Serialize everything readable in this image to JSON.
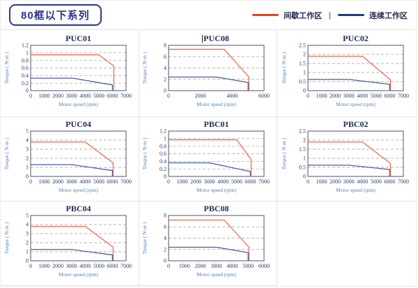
{
  "header": {
    "series_title": "80框以下系列",
    "legend_separator": "|",
    "legend": [
      {
        "name": "intermittent-zone",
        "label": "间歇工作区",
        "color": "#e8431c"
      },
      {
        "name": "continuous-zone",
        "label": "连续工作区",
        "color": "#1f3c87"
      }
    ]
  },
  "colors": {
    "badge_navy": "#2b3690",
    "chart_red": "#ed6a4e",
    "chart_blue": "#4a5c9b",
    "frame": "#4b5563",
    "grid_dash": "#9e9e9e",
    "tick_text": "#2b3a67",
    "axis_label_text": "#4f7fc2",
    "title_text": "#1f2c55",
    "cell_border": "#e4e4e4"
  },
  "chart_data": [
    {
      "type": "line",
      "title": "PUC01",
      "cursor": false,
      "xlabel": "Motor speed (rpm)",
      "ylabel": "Torque ( N·m )",
      "xlim": [
        0,
        7000
      ],
      "xticks": [
        0,
        1000,
        2000,
        3000,
        4000,
        5000,
        6000,
        7000
      ],
      "ylim": [
        0,
        1.2
      ],
      "yticks": [
        0,
        0.2,
        0.4,
        0.6,
        0.8,
        1,
        1.2
      ],
      "series": [
        {
          "name": "间歇工作区",
          "color": "#ed6a4e",
          "points": [
            [
              0,
              0.95
            ],
            [
              5000,
              0.95
            ],
            [
              6100,
              0.65
            ],
            [
              6100,
              0
            ]
          ]
        },
        {
          "name": "连续工作区",
          "color": "#4a5c9b",
          "points": [
            [
              0,
              0.33
            ],
            [
              3100,
              0.33
            ],
            [
              6000,
              0.15
            ],
            [
              6000,
              0
            ]
          ]
        }
      ]
    },
    {
      "type": "line",
      "title": "PUC08",
      "cursor": true,
      "xlabel": "Motor speed (rpm)",
      "ylabel": "Torque ( N·m )",
      "xlim": [
        0,
        6000
      ],
      "xticks": [
        0,
        2000,
        4000,
        6000
      ],
      "ylim": [
        0,
        8
      ],
      "yticks": [
        0,
        2,
        4,
        6,
        8
      ],
      "series": [
        {
          "name": "间歇工作区",
          "color": "#ed6a4e",
          "points": [
            [
              0,
              7.3
            ],
            [
              3500,
              7.3
            ],
            [
              5050,
              2.4
            ],
            [
              5050,
              0
            ]
          ]
        },
        {
          "name": "连续工作区",
          "color": "#4a5c9b",
          "points": [
            [
              0,
              2.4
            ],
            [
              3000,
              2.4
            ],
            [
              5000,
              1.45
            ],
            [
              5000,
              0
            ]
          ]
        }
      ]
    },
    {
      "type": "line",
      "title": "PUC02",
      "cursor": false,
      "xlabel": "Motor speed (rpm)",
      "ylabel": "Torque ( N·m )",
      "xlim": [
        0,
        7000
      ],
      "xticks": [
        0,
        1000,
        2000,
        3000,
        4000,
        5000,
        6000,
        7000
      ],
      "ylim": [
        0,
        2.5
      ],
      "yticks": [
        0,
        0.5,
        1,
        1.5,
        2,
        2.5
      ],
      "series": [
        {
          "name": "间歇工作区",
          "color": "#ed6a4e",
          "points": [
            [
              0,
              1.9
            ],
            [
              4000,
              1.9
            ],
            [
              6050,
              0.6
            ],
            [
              6050,
              0
            ]
          ]
        },
        {
          "name": "连续工作区",
          "color": "#4a5c9b",
          "points": [
            [
              0,
              0.62
            ],
            [
              3000,
              0.62
            ],
            [
              6000,
              0.35
            ],
            [
              6000,
              0
            ]
          ]
        }
      ]
    },
    {
      "type": "line",
      "title": "PUC04",
      "cursor": false,
      "xlabel": "Motor speed (rpm)",
      "ylabel": "Torque ( N·m )",
      "xlim": [
        0,
        7000
      ],
      "xticks": [
        0,
        1000,
        2000,
        3000,
        4000,
        5000,
        6000,
        7000
      ],
      "ylim": [
        0,
        5
      ],
      "yticks": [
        0,
        1,
        2,
        3,
        4,
        5
      ],
      "series": [
        {
          "name": "间歇工作区",
          "color": "#ed6a4e",
          "points": [
            [
              0,
              3.8
            ],
            [
              4000,
              3.8
            ],
            [
              6050,
              1.5
            ],
            [
              6050,
              0
            ]
          ]
        },
        {
          "name": "连续工作区",
          "color": "#4a5c9b",
          "points": [
            [
              0,
              1.3
            ],
            [
              3000,
              1.3
            ],
            [
              6000,
              0.65
            ],
            [
              6000,
              0
            ]
          ]
        }
      ]
    },
    {
      "type": "line",
      "title": "PBC01",
      "cursor": false,
      "xlabel": "Motor speed (rpm)",
      "ylabel": "Torque ( N·m )",
      "xlim": [
        0,
        7000
      ],
      "xticks": [
        0,
        1000,
        2000,
        3000,
        4000,
        5000,
        6000,
        7000
      ],
      "ylim": [
        0,
        1.2
      ],
      "yticks": [
        0,
        0.2,
        0.4,
        0.6,
        0.8,
        1,
        1.2
      ],
      "series": [
        {
          "name": "间歇工作区",
          "color": "#ed6a4e",
          "points": [
            [
              0,
              0.97
            ],
            [
              5000,
              0.97
            ],
            [
              6050,
              0.45
            ],
            [
              6050,
              0
            ]
          ]
        },
        {
          "name": "连续工作区",
          "color": "#4a5c9b",
          "points": [
            [
              0,
              0.36
            ],
            [
              3000,
              0.36
            ],
            [
              6000,
              0.13
            ],
            [
              6000,
              0
            ]
          ]
        }
      ]
    },
    {
      "type": "line",
      "title": "PBC02",
      "cursor": false,
      "xlabel": "Motor speed (rpm)",
      "ylabel": "Torque ( N·m )",
      "xlim": [
        0,
        7000
      ],
      "xticks": [
        0,
        1000,
        2000,
        3000,
        4000,
        5000,
        6000,
        7000
      ],
      "ylim": [
        0,
        2.5
      ],
      "yticks": [
        0,
        0.5,
        1,
        1.5,
        2,
        2.5
      ],
      "series": [
        {
          "name": "间歇工作区",
          "color": "#ed6a4e",
          "points": [
            [
              0,
              1.9
            ],
            [
              4000,
              1.9
            ],
            [
              6050,
              0.72
            ],
            [
              6050,
              0
            ]
          ]
        },
        {
          "name": "连续工作区",
          "color": "#4a5c9b",
          "points": [
            [
              0,
              0.62
            ],
            [
              3000,
              0.62
            ],
            [
              6000,
              0.38
            ],
            [
              6000,
              0
            ]
          ]
        }
      ]
    },
    {
      "type": "line",
      "title": "PBC04",
      "cursor": false,
      "xlabel": "Motor speed (rpm)",
      "ylabel": "Torque ( N·m )",
      "xlim": [
        0,
        7000
      ],
      "xticks": [
        0,
        1000,
        2000,
        3000,
        4000,
        5000,
        6000,
        7000
      ],
      "ylim": [
        0,
        5
      ],
      "yticks": [
        0,
        1,
        2,
        3,
        4,
        5
      ],
      "series": [
        {
          "name": "间歇工作区",
          "color": "#ed6a4e",
          "points": [
            [
              0,
              3.8
            ],
            [
              4000,
              3.8
            ],
            [
              6050,
              1.5
            ],
            [
              6050,
              0
            ]
          ]
        },
        {
          "name": "连续工作区",
          "color": "#4a5c9b",
          "points": [
            [
              0,
              1.25
            ],
            [
              3000,
              1.25
            ],
            [
              6000,
              0.65
            ],
            [
              6000,
              0
            ]
          ]
        }
      ]
    },
    {
      "type": "line",
      "title": "PBC08",
      "cursor": false,
      "xlabel": "Motor speed (rpm)",
      "ylabel": "Torque ( N·m )",
      "xlim": [
        0,
        6000
      ],
      "xticks": [
        0,
        1000,
        2000,
        3000,
        4000,
        5000,
        6000
      ],
      "ylim": [
        0,
        8
      ],
      "yticks": [
        0,
        2,
        4,
        6,
        8
      ],
      "series": [
        {
          "name": "间歇工作区",
          "color": "#ed6a4e",
          "points": [
            [
              0,
              7.2
            ],
            [
              3500,
              7.2
            ],
            [
              5050,
              2.4
            ],
            [
              5050,
              0
            ]
          ]
        },
        {
          "name": "连续工作区",
          "color": "#4a5c9b",
          "points": [
            [
              0,
              2.4
            ],
            [
              3000,
              2.4
            ],
            [
              5000,
              1.45
            ],
            [
              5000,
              0
            ]
          ]
        }
      ]
    }
  ]
}
